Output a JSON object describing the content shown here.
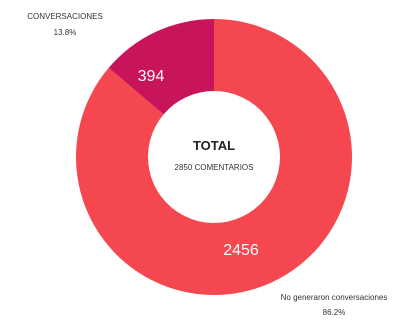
{
  "chart_data": {
    "type": "pie",
    "donut": true,
    "center": {
      "title": "TOTAL",
      "subtitle": "2850 COMENTARIOS"
    },
    "slices": [
      {
        "label": "No generaron conversaciones",
        "value": 2456,
        "value_label": "2456",
        "percent_label": "86.2%",
        "color": "#F5474F"
      },
      {
        "label": "CONVERSACIONES",
        "value": 394,
        "value_label": "394",
        "percent_label": "13.8%",
        "color": "#C7145A"
      }
    ],
    "legend": "none"
  }
}
